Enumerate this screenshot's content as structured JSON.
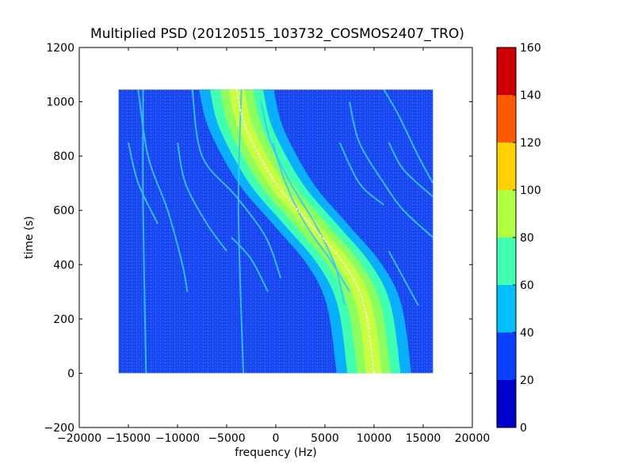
{
  "chart_data": {
    "type": "heatmap",
    "title": "Multiplied PSD (20120515_103732_COSMOS2407_TRO)",
    "xlabel": "frequency (Hz)",
    "ylabel": "time (s)",
    "xlim": [
      -20000,
      20000
    ],
    "ylim": [
      -200,
      1200
    ],
    "x_ticks": [
      "−20000",
      "−15000",
      "−10000",
      "−5000",
      "0",
      "5000",
      "10000",
      "15000",
      "20000"
    ],
    "x_tick_values": [
      -20000,
      -15000,
      -10000,
      -5000,
      0,
      5000,
      10000,
      15000,
      20000
    ],
    "y_ticks": [
      "−200",
      "0",
      "200",
      "400",
      "600",
      "800",
      "1000",
      "1200"
    ],
    "y_tick_values": [
      -200,
      0,
      200,
      400,
      600,
      800,
      1000,
      1200
    ],
    "data_extent": {
      "x": [
        -16000,
        16000
      ],
      "y": [
        0,
        1045
      ]
    },
    "colormap": "jet",
    "colorbar": {
      "ticks": [
        "0",
        "20",
        "40",
        "60",
        "80",
        "100",
        "120",
        "140",
        "160"
      ],
      "levels": [
        0,
        20,
        40,
        60,
        80,
        100,
        120,
        140,
        160
      ],
      "colors": [
        "#0000cc",
        "#0a40ff",
        "#00bfff",
        "#40ffb0",
        "#b0ff40",
        "#ffd000",
        "#ff5a00",
        "#cc0000"
      ]
    },
    "background_level_color": "#1a48f0",
    "main_track": {
      "description_points": [
        {
          "t": 1045,
          "f": -4000
        },
        {
          "t": 900,
          "f": -3000
        },
        {
          "t": 700,
          "f": 0
        },
        {
          "t": 550,
          "f": 3500
        },
        {
          "t": 400,
          "f": 7000
        },
        {
          "t": 250,
          "f": 9000
        },
        {
          "t": 0,
          "f": 10000
        }
      ],
      "band_half_widths_hz": [
        3800,
        2700,
        1700,
        800
      ],
      "band_colors": [
        "#0ab0ff",
        "#40ffb0",
        "#8cff60",
        "#c8ff40"
      ]
    },
    "secondary_tracks": [
      [
        {
          "t": 1045,
          "f": -8500
        },
        {
          "t": 800,
          "f": -7500
        },
        {
          "t": 650,
          "f": -4000
        },
        {
          "t": 500,
          "f": -1000
        },
        {
          "t": 350,
          "f": 500
        }
      ],
      [
        {
          "t": 1045,
          "f": -14000
        },
        {
          "t": 800,
          "f": -13000
        },
        {
          "t": 600,
          "f": -11000
        },
        {
          "t": 400,
          "f": -9500
        },
        {
          "t": 300,
          "f": -9000
        }
      ],
      [
        {
          "t": 1045,
          "f": -13500
        },
        {
          "t": 600,
          "f": -13500
        },
        {
          "t": 0,
          "f": -13200
        }
      ],
      [
        {
          "t": 1045,
          "f": -3500
        },
        {
          "t": 600,
          "f": -3800
        },
        {
          "t": 0,
          "f": -3300
        }
      ],
      [
        {
          "t": 850,
          "f": -15000
        },
        {
          "t": 700,
          "f": -14000
        },
        {
          "t": 550,
          "f": -12000
        }
      ],
      [
        {
          "t": 850,
          "f": -10000
        },
        {
          "t": 700,
          "f": -9200
        },
        {
          "t": 550,
          "f": -7000
        },
        {
          "t": 450,
          "f": -5000
        }
      ],
      [
        {
          "t": 1000,
          "f": -1500
        },
        {
          "t": 850,
          "f": -500
        },
        {
          "t": 700,
          "f": 1500
        },
        {
          "t": 550,
          "f": 4000
        },
        {
          "t": 400,
          "f": 6000
        },
        {
          "t": 250,
          "f": 7000
        }
      ],
      [
        {
          "t": 850,
          "f": -300
        },
        {
          "t": 700,
          "f": 1000
        },
        {
          "t": 550,
          "f": 3000
        },
        {
          "t": 420,
          "f": 5500
        },
        {
          "t": 300,
          "f": 7500
        }
      ],
      [
        {
          "t": 1000,
          "f": 7500
        },
        {
          "t": 850,
          "f": 8500
        },
        {
          "t": 700,
          "f": 11000
        },
        {
          "t": 600,
          "f": 13000
        },
        {
          "t": 500,
          "f": 16000
        }
      ],
      [
        {
          "t": 850,
          "f": 6500
        },
        {
          "t": 700,
          "f": 8500
        },
        {
          "t": 620,
          "f": 11000
        }
      ],
      [
        {
          "t": 1045,
          "f": 11000
        },
        {
          "t": 950,
          "f": 12500
        },
        {
          "t": 800,
          "f": 14500
        },
        {
          "t": 700,
          "f": 16000
        }
      ],
      [
        {
          "t": 850,
          "f": 11500
        },
        {
          "t": 750,
          "f": 13000
        },
        {
          "t": 650,
          "f": 16000
        }
      ],
      [
        {
          "t": 450,
          "f": 11500
        },
        {
          "t": 350,
          "f": 13000
        },
        {
          "t": 250,
          "f": 14500
        }
      ],
      [
        {
          "t": 500,
          "f": -4500
        },
        {
          "t": 420,
          "f": -2500
        },
        {
          "t": 300,
          "f": -800
        }
      ]
    ]
  }
}
